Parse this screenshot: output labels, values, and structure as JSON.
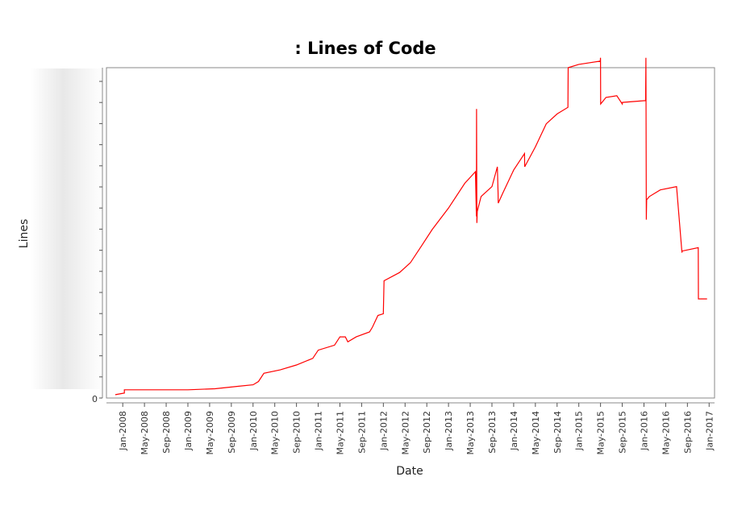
{
  "chart_data": {
    "type": "line",
    "title": ": Lines of Code",
    "xlabel": "Date",
    "ylabel": "Lines",
    "ytick_labels": [
      "0"
    ],
    "xlim": [
      "2007-10",
      "2017-02"
    ],
    "ylim": [
      0,
      1000
    ],
    "grid": false,
    "legend": "none",
    "colors": {
      "series": "#ff0000",
      "plot_border": "#8a8a8a",
      "tick": "#555555"
    },
    "x_ticks": [
      "Jan-2008",
      "May-2008",
      "Sep-2008",
      "Jan-2009",
      "May-2009",
      "Sep-2009",
      "Jan-2010",
      "May-2010",
      "Sep-2010",
      "Jan-2011",
      "May-2011",
      "Sep-2011",
      "Jan-2012",
      "May-2012",
      "Sep-2012",
      "Jan-2013",
      "May-2013",
      "Sep-2013",
      "Jan-2014",
      "May-2014",
      "Sep-2014",
      "Jan-2015",
      "May-2015",
      "Sep-2015",
      "Jan-2016",
      "May-2016",
      "Sep-2016",
      "Jan-2017"
    ],
    "series": [
      {
        "x": [
          "2007-11-20",
          "2008-01-10",
          "2008-01-10",
          "2009-01-01",
          "2009-06-01",
          "2009-10-01",
          "2010-01-01",
          "2010-02-01",
          "2010-03-01",
          "2010-06-01",
          "2010-09-01",
          "2010-12-01",
          "2011-01-01",
          "2011-04-01",
          "2011-05-01",
          "2011-06-01",
          "2011-06-15",
          "2011-08-01",
          "2011-10-15",
          "2011-11-01",
          "2011-12-01",
          "2012-01-01",
          "2012-01-05",
          "2012-04-01",
          "2012-06-01",
          "2012-08-01",
          "2012-10-01",
          "2013-01-01",
          "2013-04-01",
          "2013-05-30",
          "2013-06-05",
          "2013-06-06",
          "2013-06-08",
          "2013-06-10",
          "2013-07-01",
          "2013-09-01",
          "2013-10-01",
          "2013-10-05",
          "2013-10-06",
          "2013-11-01",
          "2014-01-01",
          "2014-03-01",
          "2014-03-02",
          "2014-05-01",
          "2014-07-01",
          "2014-09-01",
          "2014-11-01",
          "2014-11-02",
          "2015-01-01",
          "2015-04-30",
          "2015-05-01",
          "2015-05-02",
          "2015-06-01",
          "2015-08-01",
          "2015-09-01",
          "2015-09-02",
          "2015-12-31",
          "2016-01-10",
          "2016-01-12",
          "2016-01-14",
          "2016-01-16",
          "2016-02-01",
          "2016-04-01",
          "2016-07-01",
          "2016-08-01",
          "2016-08-02",
          "2016-11-01",
          "2016-11-02",
          "2016-12-20"
        ],
        "y": [
          10,
          15,
          25,
          25,
          28,
          35,
          40,
          50,
          75,
          85,
          100,
          120,
          145,
          160,
          185,
          185,
          170,
          185,
          200,
          215,
          250,
          255,
          355,
          380,
          410,
          460,
          510,
          575,
          650,
          685,
          550,
          875,
          530,
          565,
          610,
          640,
          700,
          620,
          590,
          620,
          690,
          740,
          700,
          760,
          830,
          860,
          880,
          1000,
          1010,
          1020,
          1030,
          890,
          910,
          915,
          890,
          895,
          900,
          900,
          1030,
          540,
          600,
          610,
          630,
          640,
          440,
          445,
          455,
          300,
          300
        ]
      }
    ]
  }
}
